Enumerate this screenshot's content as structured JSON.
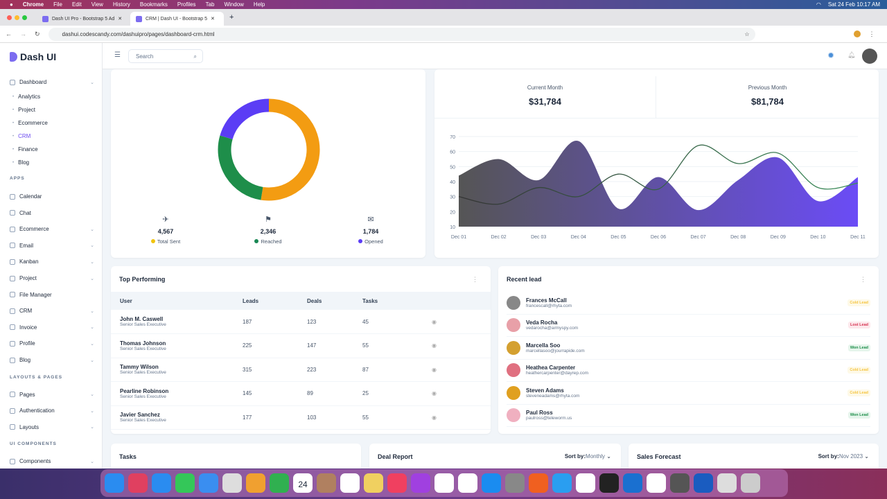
{
  "menubar": {
    "app": "Chrome",
    "items": [
      "File",
      "Edit",
      "View",
      "History",
      "Bookmarks",
      "Profiles",
      "Tab",
      "Window",
      "Help"
    ],
    "clock": "Sat 24 Feb  10:17 AM"
  },
  "tabs": [
    {
      "label": "Dash UI Pro - Bootstrap 5 Ad"
    },
    {
      "label": "CRM | Dash UI - Bootstrap 5"
    }
  ],
  "address": {
    "url": "dashui.codescandy.com/dashuipro/pages/dashboard-crm.html"
  },
  "brand": "Dash UI",
  "search": {
    "placeholder": "Search"
  },
  "sidebar": {
    "dashboard": "Dashboard",
    "dash_sub": [
      "Analytics",
      "Project",
      "Ecommerce",
      "CRM",
      "Finance",
      "Blog"
    ],
    "active": "CRM",
    "sec_apps": "APPS",
    "apps": [
      {
        "label": "Calendar",
        "chev": false
      },
      {
        "label": "Chat",
        "chev": false
      },
      {
        "label": "Ecommerce",
        "chev": true
      },
      {
        "label": "Email",
        "chev": true
      },
      {
        "label": "Kanban",
        "chev": true
      },
      {
        "label": "Project",
        "chev": true
      },
      {
        "label": "File Manager",
        "chev": false
      },
      {
        "label": "CRM",
        "chev": true
      },
      {
        "label": "Invoice",
        "chev": true
      },
      {
        "label": "Profile",
        "chev": true
      },
      {
        "label": "Blog",
        "chev": true
      }
    ],
    "sec_layouts": "LAYOUTS & PAGES",
    "layouts": [
      "Pages",
      "Authentication",
      "Layouts"
    ],
    "sec_ui": "UI COMPONENTS",
    "ui": [
      "Components"
    ]
  },
  "campaign": {
    "stats": [
      {
        "value": "4,567",
        "label": "Total Sent",
        "color": "#f1c40f"
      },
      {
        "value": "2,346",
        "label": "Reached",
        "color": "#198754"
      },
      {
        "value": "1,784",
        "label": "Opened",
        "color": "#5b3df5"
      }
    ],
    "chart_data": {
      "type": "pie",
      "donut": true,
      "values": [
        4567,
        2346,
        1784
      ],
      "labels": [
        "Total Sent",
        "Reached",
        "Opened"
      ],
      "colors": [
        "#f39c12",
        "#1e8e4a",
        "#5b3df5"
      ]
    }
  },
  "revenue": {
    "current_label": "Current Month",
    "current_value": "$31,784",
    "previous_label": "Previous Month",
    "previous_value": "$81,784",
    "chart_data": {
      "type": "area",
      "categories": [
        "Dec 01",
        "Dec 02",
        "Dec 03",
        "Dec 04",
        "Dec 05",
        "Dec 06",
        "Dec 07",
        "Dec 08",
        "Dec 09",
        "Dec 10",
        "Dec 11"
      ],
      "ylim": [
        10,
        70
      ],
      "yticks": [
        10,
        20,
        30,
        40,
        50,
        60,
        70
      ],
      "grid": true,
      "series": [
        {
          "values": [
            44,
            55,
            41,
            67,
            22,
            43,
            21,
            41,
            56,
            27,
            43
          ],
          "kind": "area",
          "colors": [
            "#555",
            "#6b4cf6"
          ]
        },
        {
          "values": [
            30,
            25,
            36,
            30,
            45,
            35,
            64,
            52,
            59,
            36,
            39
          ],
          "kind": "line",
          "colors": [
            "#333",
            "#3d8f5c"
          ]
        }
      ]
    }
  },
  "top": {
    "title": "Top Performing",
    "columns": [
      "User",
      "Leads",
      "Deals",
      "Tasks"
    ],
    "rows": [
      {
        "name": "John M. Caswell",
        "role": "Senior Sales Executive",
        "leads": "187",
        "deals": "123",
        "tasks": "45"
      },
      {
        "name": "Thomas Johnson",
        "role": "Senior Sales Executive",
        "leads": "225",
        "deals": "147",
        "tasks": "55"
      },
      {
        "name": "Tammy Wilson",
        "role": "Senior Sales Executive",
        "leads": "315",
        "deals": "223",
        "tasks": "87"
      },
      {
        "name": "Pearline Robinson",
        "role": "Senior Sales Executive",
        "leads": "145",
        "deals": "89",
        "tasks": "25"
      },
      {
        "name": "Javier Sanchez",
        "role": "Senior Sales Executive",
        "leads": "177",
        "deals": "103",
        "tasks": "55"
      }
    ]
  },
  "recent": {
    "title": "Recent lead",
    "leads": [
      {
        "name": "Frances McCall",
        "email": "francescall@rhyta.com",
        "status": "Cold Lead"
      },
      {
        "name": "Veda Rocha",
        "email": "vedarocha@armyspy.com",
        "status": "Lost Lead"
      },
      {
        "name": "Marcella Soo",
        "email": "marcellasoo@jourrapide.com",
        "status": "Won Lead"
      },
      {
        "name": "Heathea Carpenter",
        "email": "heathercarpenter@dayrep.com",
        "status": "Cold Lead"
      },
      {
        "name": "Steven Adams",
        "email": "steveneadams@rhyta.com",
        "status": "Cold Lead"
      },
      {
        "name": "Paul Ross",
        "email": "paulross@teleworm.us",
        "status": "Won Lead"
      }
    ]
  },
  "status_colors": {
    "Cold Lead": [
      "#fef9e7",
      "#f5c542"
    ],
    "Lost Lead": [
      "#fde8ec",
      "#d63452"
    ],
    "Won Lead": [
      "#e6f5ec",
      "#1e8e4a"
    ]
  },
  "bottom": {
    "tasks": "Tasks",
    "deal": "Deal Report",
    "deal_sort_label": "Sort by:",
    "deal_sort": "Monthly",
    "sales": "Sales Forecast",
    "sales_sort_label": "Sort by:",
    "sales_sort": "Nov 2023"
  },
  "dock": {
    "calendar_date": "24"
  }
}
